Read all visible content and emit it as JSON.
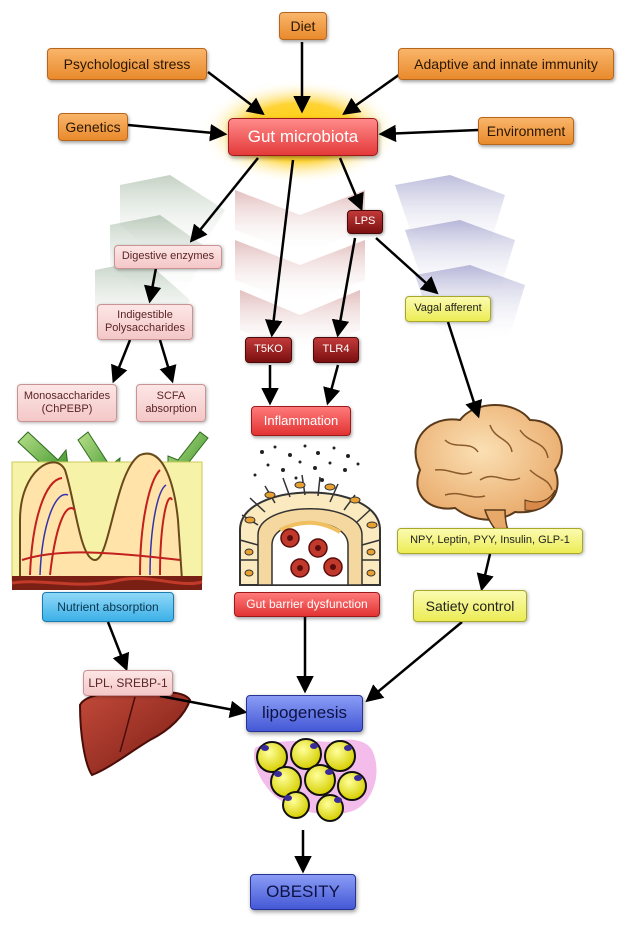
{
  "nodes": {
    "diet": "Diet",
    "psych_stress": "Psychological stress",
    "immunity": "Adaptive and innate immunity",
    "genetics": "Genetics",
    "gut_microbiota": "Gut microbiota",
    "environment": "Environment",
    "lps": "LPS",
    "digestive_enzymes": "Digestive enzymes",
    "indigestible_polysaccharides": "Indigestible\nPolysaccharides",
    "monosaccharides": "Monosaccharides\n(ChPEBP)",
    "scfa_absorption": "SCFA\nabsorption",
    "t5ko": "T5KO",
    "tlr4": "TLR4",
    "inflammation": "Inflammation",
    "vagal_afferent": "Vagal afferent",
    "hormones": "NPY, Leptin, PYY, Insulin, GLP-1",
    "nutrient_absorption": "Nutrient absorption",
    "gut_barrier": "Gut barrier dysfunction",
    "satiety": "Satiety control",
    "lpl_srebp": "LPL, SREBP-1",
    "lipogenesis": "lipogenesis",
    "obesity": "OBESITY"
  },
  "illustrations": [
    "intestinal-villi-icon",
    "intestinal-epithelium-icon",
    "brain-icon",
    "liver-icon",
    "adipocytes-icon"
  ],
  "colors": {
    "orange": "#e98a2c",
    "red": "#e23333",
    "dark_red": "#7b0f0f",
    "pink": "#f4c7c7",
    "yellow": "#ecec55",
    "blue": "#3bb0e8",
    "purple": "#4458d6",
    "glow": "#f7c400"
  }
}
